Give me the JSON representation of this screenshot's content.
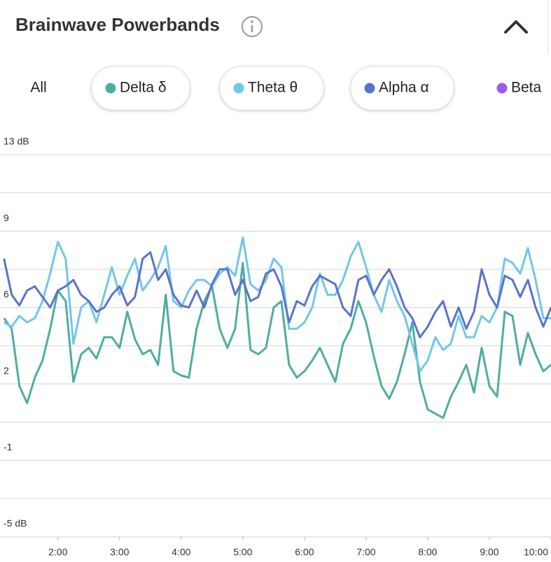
{
  "chart_data": {
    "type": "line",
    "title": "Brainwave Powerbands",
    "x": [
      1.125,
      1.25,
      1.375,
      1.5,
      1.625,
      1.75,
      1.875,
      2,
      2.125,
      2.25,
      2.375,
      2.5,
      2.625,
      2.75,
      2.875,
      3,
      3.125,
      3.25,
      3.375,
      3.5,
      3.625,
      3.75,
      3.875,
      4,
      4.125,
      4.25,
      4.375,
      4.5,
      4.625,
      4.75,
      4.875,
      5,
      5.125,
      5.25,
      5.375,
      5.5,
      5.625,
      5.75,
      5.875,
      6,
      6.125,
      6.25,
      6.375,
      6.5,
      6.625,
      6.75,
      6.875,
      7,
      7.125,
      7.25,
      7.375,
      7.5,
      7.625,
      7.75,
      7.875,
      8,
      8.125,
      8.25,
      8.375,
      8.5,
      8.625,
      8.75,
      8.875,
      9,
      9.125,
      9.25,
      9.375,
      9.5,
      9.625,
      9.75,
      9.875,
      10
    ],
    "series": [
      {
        "name": "Delta δ",
        "color": "#4fada0",
        "values": [
          5.3,
          4.8,
          2.1,
          1.3,
          2.5,
          3.3,
          4.8,
          6.6,
          6.1,
          2.3,
          3.6,
          3.9,
          3.4,
          4.4,
          4.4,
          3.9,
          5.6,
          4.3,
          3.6,
          3.8,
          3.1,
          6.4,
          2.8,
          2.6,
          2.5,
          4.8,
          6.1,
          6.8,
          4.8,
          3.9,
          4.8,
          7.9,
          3.8,
          3.6,
          3.9,
          5.8,
          6.1,
          3.1,
          2.5,
          2.8,
          3.3,
          3.9,
          3.1,
          2.3,
          4.1,
          4.8,
          6.1,
          5.1,
          3.5,
          2.1,
          1.5,
          2.3,
          3.6,
          5.1,
          2.3,
          1.0,
          0.8,
          0.6,
          1.6,
          2.3,
          3.1,
          1.8,
          3.9,
          2.1,
          1.6,
          5.6,
          5.4,
          3.1,
          4.6,
          3.6,
          2.8,
          3.1
        ]
      },
      {
        "name": "Theta θ",
        "color": "#72c6ec",
        "values": [
          5.1,
          4.9,
          5.4,
          5.1,
          5.3,
          6.1,
          7.4,
          8.9,
          8.1,
          4.1,
          5.8,
          6.1,
          5.1,
          6.4,
          7.7,
          6.4,
          7.3,
          8.1,
          6.6,
          7.1,
          7.7,
          8.7,
          6.1,
          5.8,
          6.6,
          7.1,
          7.1,
          6.8,
          7.4,
          7.7,
          7.3,
          9.1,
          6.9,
          6.6,
          7.1,
          8.1,
          7.7,
          4.8,
          4.8,
          5.1,
          5.8,
          7.4,
          6.4,
          6.4,
          7.1,
          8.2,
          8.9,
          7.7,
          6.4,
          5.6,
          7.1,
          6.1,
          5.4,
          4.1,
          2.8,
          3.3,
          4.4,
          3.8,
          4.1,
          5.4,
          4.4,
          4.4,
          5.4,
          5.1,
          5.8,
          8.1,
          7.9,
          7.4,
          8.6,
          7.1,
          5.3,
          5.3
        ]
      },
      {
        "name": "Alpha α",
        "color": "#5a73cc",
        "values": [
          8.1,
          6.4,
          5.9,
          6.6,
          6.8,
          6.3,
          5.8,
          6.6,
          6.8,
          7.1,
          6.4,
          6.1,
          5.6,
          5.8,
          6.4,
          6.8,
          5.9,
          6.3,
          8.1,
          8.4,
          7.1,
          7.6,
          6.4,
          5.9,
          5.8,
          6.6,
          5.8,
          6.9,
          7.6,
          7.6,
          6.4,
          7.1,
          6.1,
          6.3,
          7.4,
          7.6,
          6.8,
          5.1,
          6.1,
          5.9,
          6.8,
          7.3,
          7.1,
          6.9,
          5.8,
          5.4,
          7.1,
          7.3,
          6.4,
          7.1,
          7.6,
          6.8,
          5.8,
          5.3,
          4.4,
          4.9,
          5.6,
          6.1,
          4.9,
          5.8,
          4.8,
          5.6,
          7.6,
          6.4,
          5.8,
          7.3,
          7.1,
          6.3,
          7.1,
          5.8,
          4.9,
          5.8
        ]
      }
    ],
    "xlim": [
      1.06,
      10
    ],
    "xticks": [
      {
        "value": 2,
        "label": "2:00"
      },
      {
        "value": 3,
        "label": "3:00"
      },
      {
        "value": 4,
        "label": "4:00"
      },
      {
        "value": 5,
        "label": "5:00"
      },
      {
        "value": 6,
        "label": "6:00"
      },
      {
        "value": 7,
        "label": "7:00"
      },
      {
        "value": 8,
        "label": "8:00"
      },
      {
        "value": 9,
        "label": "9:00"
      },
      {
        "value": 10,
        "label": "10:00"
      }
    ],
    "ylim": [
      -5,
      13
    ],
    "yticks": [
      {
        "value": 13,
        "label": "13 dB"
      },
      {
        "value": 9.4,
        "label": "9"
      },
      {
        "value": 5.8,
        "label": "6"
      },
      {
        "value": 2.2,
        "label": "2"
      },
      {
        "value": -1.4,
        "label": "-1"
      },
      {
        "value": -5,
        "label": "-5 dB"
      }
    ],
    "minor_yticks": [
      11.2,
      7.6,
      4,
      0.4,
      -3.2
    ],
    "grid": true
  },
  "tabs": {
    "all": "All",
    "beta": {
      "label": "Beta",
      "color": "#9b5cf0"
    }
  }
}
